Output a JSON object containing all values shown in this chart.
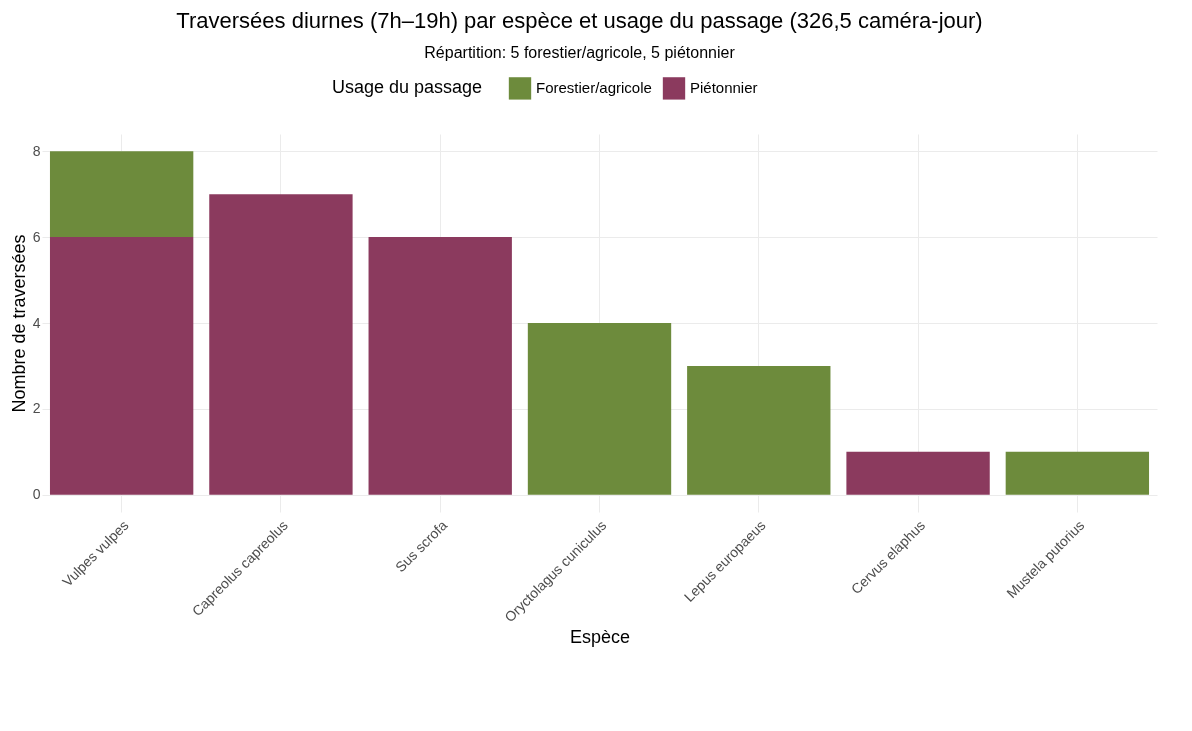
{
  "chart_data": {
    "type": "bar",
    "title": "Traversées diurnes (7h–19h) par espèce et usage du passage (326,5 caméra-jour)",
    "subtitle": "Répartition: 5 forestier/agricole, 5 piétonnier",
    "xlabel": "Espèce",
    "ylabel": "Nombre de traversées",
    "legend_title": "Usage du passage",
    "categories": [
      "Vulpes vulpes",
      "Capreolus capreolus",
      "Sus scrofa",
      "Oryctolagus cuniculus",
      "Lepus europaeus",
      "Cervus elaphus",
      "Mustela putorius"
    ],
    "series": [
      {
        "name": "Piétonnier",
        "color": "#8b3a5e",
        "values": [
          6,
          7,
          6,
          null,
          null,
          1,
          null
        ]
      },
      {
        "name": "Forestier/agricole",
        "color": "#6d8b3c",
        "values": [
          2,
          null,
          null,
          4,
          3,
          null,
          1
        ]
      }
    ],
    "stacked": true,
    "ylim": [
      -0.4,
      8.4
    ],
    "yticks": [
      0,
      2,
      4,
      6,
      8
    ],
    "grid": true,
    "legend": "top"
  }
}
